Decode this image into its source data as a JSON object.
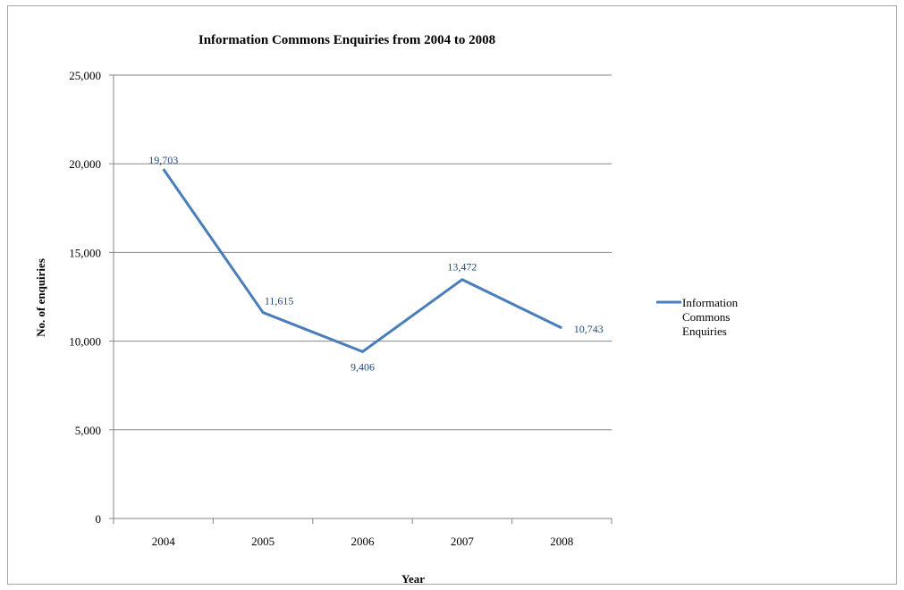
{
  "chart_data": {
    "type": "line",
    "title": "Information Commons Enquiries from 2004 to 2008",
    "xlabel": "Year",
    "ylabel": "No. of enquiries",
    "categories": [
      "2004",
      "2005",
      "2006",
      "2007",
      "2008"
    ],
    "series": [
      {
        "name": "Information Commons Enquiries",
        "values": [
          19703,
          11615,
          9406,
          13472,
          10743
        ],
        "data_labels": [
          "19,703",
          "11,615",
          "9,406",
          "13,472",
          "10,743"
        ],
        "color": "#4a7ebb"
      }
    ],
    "ylim": [
      0,
      25000
    ],
    "yticks": [
      0,
      5000,
      10000,
      15000,
      20000,
      25000
    ],
    "ytick_labels": [
      "0",
      "5,000",
      "10,000",
      "15,000",
      "20,000",
      "25,000"
    ],
    "grid": true,
    "legend": "right",
    "label_color": "#1f497d",
    "gridline_color": "#868686"
  }
}
